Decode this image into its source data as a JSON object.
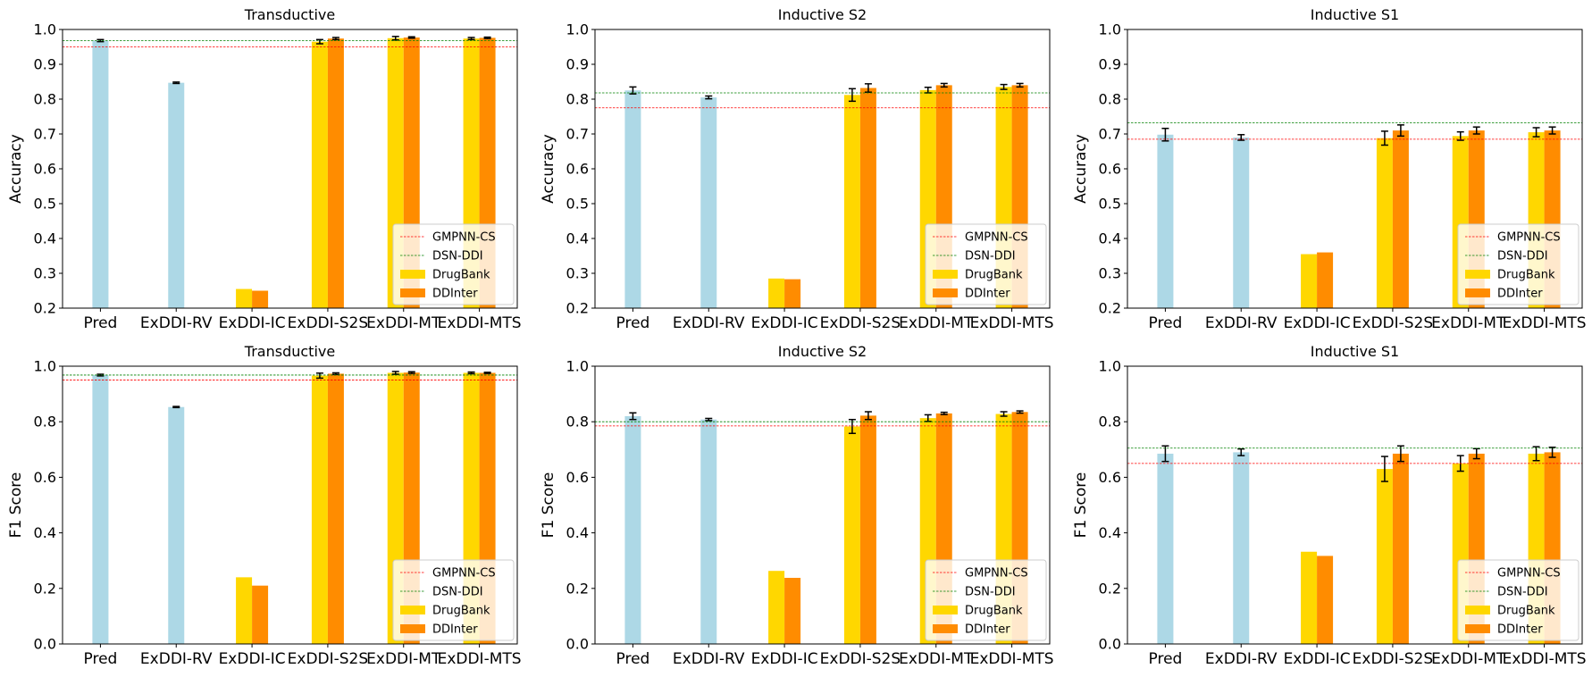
{
  "figure_colors": {
    "pred": "#add8e6",
    "drugbank": "#ffd700",
    "ddinter": "#ff8c00",
    "gmpnn_line": "#ff0000",
    "dsn_line": "#008000",
    "errorbar": "#000000"
  },
  "chart_data": [
    {
      "type": "bar",
      "title": "Transductive",
      "ylabel": "Accuracy",
      "ylim": [
        0.2,
        1.0
      ],
      "yticks": [
        "0.2",
        "0.3",
        "0.4",
        "0.5",
        "0.6",
        "0.7",
        "0.8",
        "0.9",
        "1.0"
      ],
      "categories": [
        "Pred",
        "ExDDI-RV",
        "ExDDI-IC",
        "ExDDI-S2S",
        "ExDDI-MT",
        "ExDDI-MTS"
      ],
      "series": [
        {
          "name": "Pred",
          "color": "#add8e6",
          "values": [
            0.968,
            0.847,
            null,
            null,
            null,
            null
          ],
          "errors": [
            0.003,
            0.002,
            null,
            null,
            null,
            null
          ]
        },
        {
          "name": "DrugBank",
          "color": "#ffd700",
          "values": [
            null,
            null,
            0.255,
            0.965,
            0.975,
            0.974
          ],
          "errors": [
            null,
            null,
            null,
            0.006,
            0.005,
            0.003
          ]
        },
        {
          "name": "DDInter",
          "color": "#ff8c00",
          "values": [
            null,
            null,
            0.25,
            0.974,
            0.977,
            0.976
          ],
          "errors": [
            null,
            null,
            null,
            0.003,
            0.002,
            0.002
          ]
        }
      ],
      "reference_lines": [
        {
          "name": "GMPNN-CS",
          "value": 0.95,
          "color": "#ff0000"
        },
        {
          "name": "DSN-DDI",
          "value": 0.968,
          "color": "#008000"
        }
      ],
      "legend": [
        "GMPNN-CS",
        "DSN-DDI",
        "DrugBank",
        "DDInter"
      ],
      "legend_position": "lower-right"
    },
    {
      "type": "bar",
      "title": "Inductive S2",
      "ylabel": "Accuracy",
      "ylim": [
        0.2,
        1.0
      ],
      "yticks": [
        "0.2",
        "0.3",
        "0.4",
        "0.5",
        "0.6",
        "0.7",
        "0.8",
        "0.9",
        "1.0"
      ],
      "categories": [
        "Pred",
        "ExDDI-RV",
        "ExDDI-IC",
        "ExDDI-S2S",
        "ExDDI-MT",
        "ExDDI-MTS"
      ],
      "series": [
        {
          "name": "Pred",
          "color": "#add8e6",
          "values": [
            0.825,
            0.805,
            null,
            null,
            null,
            null
          ],
          "errors": [
            0.01,
            0.004,
            null,
            null,
            null,
            null
          ]
        },
        {
          "name": "DrugBank",
          "color": "#ffd700",
          "values": [
            null,
            null,
            0.285,
            0.812,
            0.826,
            0.835
          ],
          "errors": [
            null,
            null,
            null,
            0.018,
            0.008,
            0.007
          ]
        },
        {
          "name": "DDInter",
          "color": "#ff8c00",
          "values": [
            null,
            null,
            0.283,
            0.832,
            0.84,
            0.84
          ],
          "errors": [
            null,
            null,
            null,
            0.012,
            0.005,
            0.005
          ]
        }
      ],
      "reference_lines": [
        {
          "name": "GMPNN-CS",
          "value": 0.775,
          "color": "#ff0000"
        },
        {
          "name": "DSN-DDI",
          "value": 0.818,
          "color": "#008000"
        }
      ],
      "legend": [
        "GMPNN-CS",
        "DSN-DDI",
        "DrugBank",
        "DDInter"
      ],
      "legend_position": "lower-right"
    },
    {
      "type": "bar",
      "title": "Inductive S1",
      "ylabel": "Accuracy",
      "ylim": [
        0.2,
        1.0
      ],
      "yticks": [
        "0.2",
        "0.3",
        "0.4",
        "0.5",
        "0.6",
        "0.7",
        "0.8",
        "0.9",
        "1.0"
      ],
      "categories": [
        "Pred",
        "ExDDI-RV",
        "ExDDI-IC",
        "ExDDI-S2S",
        "ExDDI-MT",
        "ExDDI-MTS"
      ],
      "series": [
        {
          "name": "Pred",
          "color": "#add8e6",
          "values": [
            0.698,
            0.69,
            null,
            null,
            null,
            null
          ],
          "errors": [
            0.018,
            0.008,
            null,
            null,
            null,
            null
          ]
        },
        {
          "name": "DrugBank",
          "color": "#ffd700",
          "values": [
            null,
            null,
            0.355,
            0.688,
            0.694,
            0.705
          ],
          "errors": [
            null,
            null,
            null,
            0.02,
            0.012,
            0.013
          ]
        },
        {
          "name": "DDInter",
          "color": "#ff8c00",
          "values": [
            null,
            null,
            0.36,
            0.71,
            0.71,
            0.71
          ],
          "errors": [
            null,
            null,
            null,
            0.016,
            0.01,
            0.01
          ]
        }
      ],
      "reference_lines": [
        {
          "name": "GMPNN-CS",
          "value": 0.685,
          "color": "#ff0000"
        },
        {
          "name": "DSN-DDI",
          "value": 0.732,
          "color": "#008000"
        }
      ],
      "legend": [
        "GMPNN-CS",
        "DSN-DDI",
        "DrugBank",
        "DDInter"
      ],
      "legend_position": "lower-right"
    },
    {
      "type": "bar",
      "title": "Transductive",
      "ylabel": "F1 Score",
      "ylim": [
        0.0,
        1.0
      ],
      "yticks": [
        "0.0",
        "0.2",
        "0.4",
        "0.6",
        "0.8",
        "1.0"
      ],
      "categories": [
        "Pred",
        "ExDDI-RV",
        "ExDDI-IC",
        "ExDDI-S2S",
        "ExDDI-MT",
        "ExDDI-MTS"
      ],
      "series": [
        {
          "name": "Pred",
          "color": "#add8e6",
          "values": [
            0.968,
            0.853,
            null,
            null,
            null,
            null
          ],
          "errors": [
            0.003,
            0.002,
            null,
            null,
            null,
            null
          ]
        },
        {
          "name": "DrugBank",
          "color": "#ffd700",
          "values": [
            null,
            null,
            0.24,
            0.966,
            0.976,
            0.976
          ],
          "errors": [
            null,
            null,
            null,
            0.009,
            0.005,
            0.003
          ]
        },
        {
          "name": "DDInter",
          "color": "#ff8c00",
          "values": [
            null,
            null,
            0.21,
            0.973,
            0.977,
            0.976
          ],
          "errors": [
            null,
            null,
            null,
            0.003,
            0.003,
            0.002
          ]
        }
      ],
      "reference_lines": [
        {
          "name": "GMPNN-CS",
          "value": 0.95,
          "color": "#ff0000"
        },
        {
          "name": "DSN-DDI",
          "value": 0.968,
          "color": "#008000"
        }
      ],
      "legend": [
        "GMPNN-CS",
        "DSN-DDI",
        "DrugBank",
        "DDInter"
      ],
      "legend_position": "lower-right"
    },
    {
      "type": "bar",
      "title": "Inductive S2",
      "ylabel": "F1 Score",
      "ylim": [
        0.0,
        1.0
      ],
      "yticks": [
        "0.0",
        "0.2",
        "0.4",
        "0.6",
        "0.8",
        "1.0"
      ],
      "categories": [
        "Pred",
        "ExDDI-RV",
        "ExDDI-IC",
        "ExDDI-S2S",
        "ExDDI-MT",
        "ExDDI-MTS"
      ],
      "series": [
        {
          "name": "Pred",
          "color": "#add8e6",
          "values": [
            0.82,
            0.808,
            null,
            null,
            null,
            null
          ],
          "errors": [
            0.012,
            0.004,
            null,
            null,
            null,
            null
          ]
        },
        {
          "name": "DrugBank",
          "color": "#ffd700",
          "values": [
            null,
            null,
            0.263,
            0.783,
            0.813,
            0.828
          ],
          "errors": [
            null,
            null,
            null,
            0.025,
            0.012,
            0.008
          ]
        },
        {
          "name": "DDInter",
          "color": "#ff8c00",
          "values": [
            null,
            null,
            0.238,
            0.822,
            0.83,
            0.835
          ],
          "errors": [
            null,
            null,
            null,
            0.014,
            0.004,
            0.004
          ]
        }
      ],
      "reference_lines": [
        {
          "name": "GMPNN-CS",
          "value": 0.785,
          "color": "#ff0000"
        },
        {
          "name": "DSN-DDI",
          "value": 0.8,
          "color": "#008000"
        }
      ],
      "legend": [
        "GMPNN-CS",
        "DSN-DDI",
        "DrugBank",
        "DDInter"
      ],
      "legend_position": "lower-right"
    },
    {
      "type": "bar",
      "title": "Inductive S1",
      "ylabel": "F1 Score",
      "ylim": [
        0.0,
        1.0
      ],
      "yticks": [
        "0.0",
        "0.2",
        "0.4",
        "0.6",
        "0.8",
        "1.0"
      ],
      "categories": [
        "Pred",
        "ExDDI-RV",
        "ExDDI-IC",
        "ExDDI-S2S",
        "ExDDI-MT",
        "ExDDI-MTS"
      ],
      "series": [
        {
          "name": "Pred",
          "color": "#add8e6",
          "values": [
            0.685,
            0.69,
            null,
            null,
            null,
            null
          ],
          "errors": [
            0.028,
            0.012,
            null,
            null,
            null,
            null
          ]
        },
        {
          "name": "DrugBank",
          "color": "#ffd700",
          "values": [
            null,
            null,
            0.332,
            0.63,
            0.65,
            0.685
          ],
          "errors": [
            null,
            null,
            null,
            0.045,
            0.028,
            0.025
          ]
        },
        {
          "name": "DDInter",
          "color": "#ff8c00",
          "values": [
            null,
            null,
            0.317,
            0.685,
            0.685,
            0.69
          ],
          "errors": [
            null,
            null,
            null,
            0.028,
            0.018,
            0.018
          ]
        }
      ],
      "reference_lines": [
        {
          "name": "GMPNN-CS",
          "value": 0.65,
          "color": "#ff0000"
        },
        {
          "name": "DSN-DDI",
          "value": 0.705,
          "color": "#008000"
        }
      ],
      "legend": [
        "GMPNN-CS",
        "DSN-DDI",
        "DrugBank",
        "DDInter"
      ],
      "legend_position": "lower-right"
    }
  ]
}
